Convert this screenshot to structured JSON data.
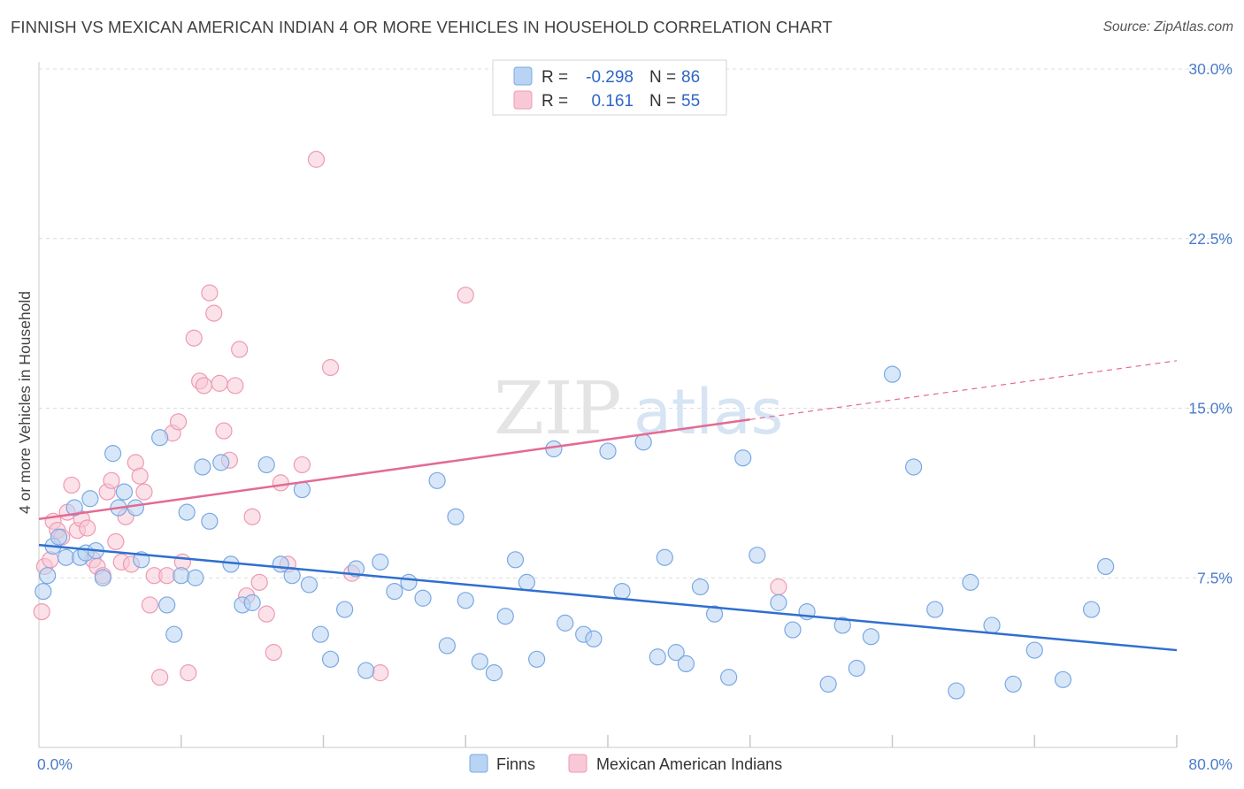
{
  "header": {
    "title": "FINNISH VS MEXICAN AMERICAN INDIAN 4 OR MORE VEHICLES IN HOUSEHOLD CORRELATION CHART",
    "source": "Source: ZipAtlas.com"
  },
  "watermark": {
    "zip": "ZIP",
    "atlas": "atlas"
  },
  "legend": {
    "rows": [
      {
        "r_label": "R =",
        "r_value": "-0.298",
        "n_label": "N =",
        "n_value": "86",
        "color": "#9ec2ee"
      },
      {
        "r_label": "R =",
        "r_value": "0.161",
        "n_label": "N =",
        "n_value": "55",
        "color": "#f4b6c8"
      }
    ]
  },
  "bottom_legend": [
    "Finns",
    "Mexican American Indians"
  ],
  "colors": {
    "finns_fill": "#b8d3f3",
    "finns_stroke": "#7aa8e4",
    "finns_line": "#2f6fcf",
    "mexican_fill": "#f8c8d6",
    "mexican_stroke": "#ee9ab3",
    "mexican_line": "#e46a93",
    "grid": "#dcdcdc",
    "tick_label": "#4a7cc9"
  },
  "chart_data": {
    "type": "scatter",
    "title": "FINNISH VS MEXICAN AMERICAN INDIAN 4 OR MORE VEHICLES IN HOUSEHOLD CORRELATION CHART",
    "xlabel": "",
    "ylabel": "4 or more Vehicles in Household",
    "xlim": [
      0,
      80
    ],
    "ylim": [
      0,
      30
    ],
    "x_tick_labels": [
      "0.0%",
      "80.0%"
    ],
    "y_ticks": [
      7.5,
      15.0,
      22.5,
      30.0
    ],
    "y_tick_labels": [
      "7.5%",
      "15.0%",
      "22.5%",
      "30.0%"
    ],
    "grid": "horizontal dashed",
    "legend_position": "top-center",
    "series": [
      {
        "name": "Finns",
        "r": -0.298,
        "n": 86,
        "trend": {
          "x": [
            0,
            80
          ],
          "y": [
            8.95,
            4.3
          ]
        },
        "points": [
          [
            0.3,
            6.9
          ],
          [
            0.6,
            7.6
          ],
          [
            1.0,
            8.9
          ],
          [
            1.4,
            9.3
          ],
          [
            1.9,
            8.4
          ],
          [
            2.5,
            10.6
          ],
          [
            2.9,
            8.4
          ],
          [
            3.3,
            8.6
          ],
          [
            3.6,
            11.0
          ],
          [
            4.0,
            8.7
          ],
          [
            4.5,
            7.5
          ],
          [
            5.2,
            13.0
          ],
          [
            5.6,
            10.6
          ],
          [
            6.0,
            11.3
          ],
          [
            6.8,
            10.6
          ],
          [
            7.2,
            8.3
          ],
          [
            8.5,
            13.7
          ],
          [
            9.0,
            6.3
          ],
          [
            9.5,
            5.0
          ],
          [
            10.0,
            7.6
          ],
          [
            10.4,
            10.4
          ],
          [
            11.0,
            7.5
          ],
          [
            11.5,
            12.4
          ],
          [
            12.0,
            10.0
          ],
          [
            12.8,
            12.6
          ],
          [
            13.5,
            8.1
          ],
          [
            14.3,
            6.3
          ],
          [
            15.0,
            6.4
          ],
          [
            16.0,
            12.5
          ],
          [
            17.0,
            8.1
          ],
          [
            17.8,
            7.6
          ],
          [
            18.5,
            11.4
          ],
          [
            19.0,
            7.2
          ],
          [
            19.8,
            5.0
          ],
          [
            20.5,
            3.9
          ],
          [
            21.5,
            6.1
          ],
          [
            22.3,
            7.9
          ],
          [
            23.0,
            3.4
          ],
          [
            24.0,
            8.2
          ],
          [
            25.0,
            6.9
          ],
          [
            26.0,
            7.3
          ],
          [
            27.0,
            6.6
          ],
          [
            28.0,
            11.8
          ],
          [
            28.7,
            4.5
          ],
          [
            29.3,
            10.2
          ],
          [
            30.0,
            6.5
          ],
          [
            31.0,
            3.8
          ],
          [
            32.0,
            3.3
          ],
          [
            32.8,
            5.8
          ],
          [
            33.5,
            8.3
          ],
          [
            34.3,
            7.3
          ],
          [
            35.0,
            3.9
          ],
          [
            36.2,
            13.2
          ],
          [
            37.0,
            5.5
          ],
          [
            38.3,
            5.0
          ],
          [
            39.0,
            4.8
          ],
          [
            40.0,
            13.1
          ],
          [
            41.0,
            6.9
          ],
          [
            42.5,
            13.5
          ],
          [
            43.5,
            4.0
          ],
          [
            44.0,
            8.4
          ],
          [
            44.8,
            4.2
          ],
          [
            45.5,
            3.7
          ],
          [
            46.5,
            7.1
          ],
          [
            47.5,
            5.9
          ],
          [
            48.5,
            3.1
          ],
          [
            49.5,
            12.8
          ],
          [
            50.5,
            8.5
          ],
          [
            52.0,
            6.4
          ],
          [
            53.0,
            5.2
          ],
          [
            54.0,
            6.0
          ],
          [
            55.5,
            2.8
          ],
          [
            56.5,
            5.4
          ],
          [
            57.5,
            3.5
          ],
          [
            58.5,
            4.9
          ],
          [
            60.0,
            16.5
          ],
          [
            61.5,
            12.4
          ],
          [
            63.0,
            6.1
          ],
          [
            64.5,
            2.5
          ],
          [
            65.5,
            7.3
          ],
          [
            67.0,
            5.4
          ],
          [
            68.5,
            2.8
          ],
          [
            70.0,
            4.3
          ],
          [
            72.0,
            3.0
          ],
          [
            74.0,
            6.1
          ],
          [
            75.0,
            8.0
          ]
        ]
      },
      {
        "name": "Mexican American Indians",
        "r": 0.161,
        "n": 55,
        "trend": {
          "x": [
            0,
            50
          ],
          "y": [
            10.1,
            14.5
          ]
        },
        "trend_dashed": {
          "x": [
            50,
            80
          ],
          "y": [
            14.5,
            17.1
          ]
        },
        "points": [
          [
            0.2,
            6.0
          ],
          [
            0.4,
            8.0
          ],
          [
            0.8,
            8.3
          ],
          [
            1.0,
            10.0
          ],
          [
            1.3,
            9.6
          ],
          [
            1.6,
            9.3
          ],
          [
            2.0,
            10.4
          ],
          [
            2.3,
            11.6
          ],
          [
            2.7,
            9.6
          ],
          [
            3.0,
            10.1
          ],
          [
            3.4,
            9.7
          ],
          [
            3.8,
            8.3
          ],
          [
            4.1,
            8.0
          ],
          [
            4.5,
            7.6
          ],
          [
            4.8,
            11.3
          ],
          [
            5.1,
            11.8
          ],
          [
            5.4,
            9.1
          ],
          [
            5.8,
            8.2
          ],
          [
            6.1,
            10.2
          ],
          [
            6.5,
            8.1
          ],
          [
            6.8,
            12.6
          ],
          [
            7.1,
            12.0
          ],
          [
            7.4,
            11.3
          ],
          [
            7.8,
            6.3
          ],
          [
            8.1,
            7.6
          ],
          [
            8.5,
            3.1
          ],
          [
            9.0,
            7.6
          ],
          [
            9.4,
            13.9
          ],
          [
            9.8,
            14.4
          ],
          [
            10.1,
            8.2
          ],
          [
            10.5,
            3.3
          ],
          [
            10.9,
            18.1
          ],
          [
            11.3,
            16.2
          ],
          [
            11.6,
            16.0
          ],
          [
            12.0,
            20.1
          ],
          [
            12.3,
            19.2
          ],
          [
            12.7,
            16.1
          ],
          [
            13.0,
            14.0
          ],
          [
            13.4,
            12.7
          ],
          [
            13.8,
            16.0
          ],
          [
            14.1,
            17.6
          ],
          [
            14.6,
            6.7
          ],
          [
            15.0,
            10.2
          ],
          [
            15.5,
            7.3
          ],
          [
            16.0,
            5.9
          ],
          [
            16.5,
            4.2
          ],
          [
            17.0,
            11.7
          ],
          [
            17.5,
            8.1
          ],
          [
            18.5,
            12.5
          ],
          [
            19.5,
            26.0
          ],
          [
            20.5,
            16.8
          ],
          [
            22.0,
            7.7
          ],
          [
            24.0,
            3.3
          ],
          [
            30.0,
            20.0
          ],
          [
            52.0,
            7.1
          ]
        ]
      }
    ]
  }
}
